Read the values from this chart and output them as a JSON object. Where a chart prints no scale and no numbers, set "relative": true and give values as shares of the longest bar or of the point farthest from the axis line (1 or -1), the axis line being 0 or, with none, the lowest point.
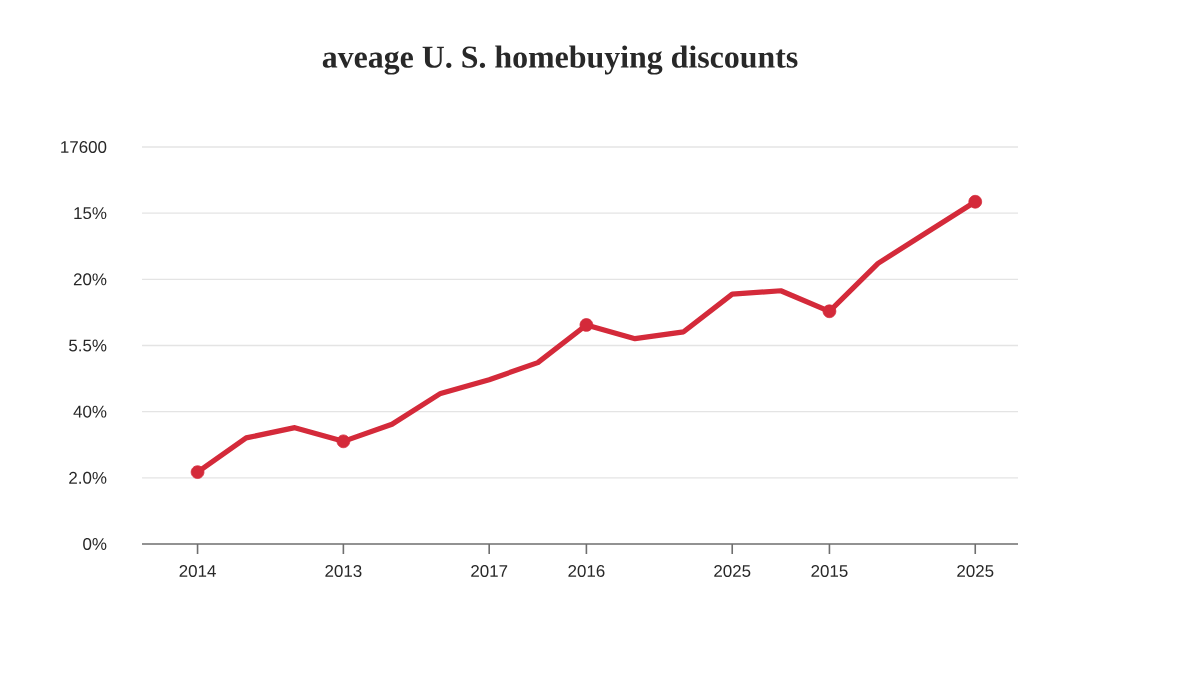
{
  "chart_data": {
    "type": "line",
    "title": "aveage U. S. homebuying discounts",
    "relative": true,
    "categories": [
      "2014",
      null,
      null,
      "2013",
      null,
      null,
      "2017",
      null,
      "2016",
      null,
      null,
      "2025",
      null,
      "2015",
      null,
      null,
      "2025"
    ],
    "annotations": [
      "0%",
      "2.0%",
      "40%",
      "5.5%",
      "20%",
      "15%",
      "17600"
    ],
    "grid": "y",
    "series": [
      {
        "color": "#d42a3a",
        "values": [
          0.21,
          0.31,
          0.34,
          0.3,
          0.35,
          0.44,
          0.48,
          0.53,
          0.64,
          0.6,
          0.62,
          0.73,
          0.74,
          0.68,
          0.82,
          0.91,
          1
        ]
      },
      {
        "type": "scatter",
        "color": "#d42a3a",
        "marker": "circle",
        "values": [
          0.21,
          null,
          null,
          0.3,
          null,
          null,
          null,
          null,
          0.64,
          null,
          null,
          null,
          null,
          0.68,
          null,
          null,
          1
        ]
      }
    ]
  }
}
